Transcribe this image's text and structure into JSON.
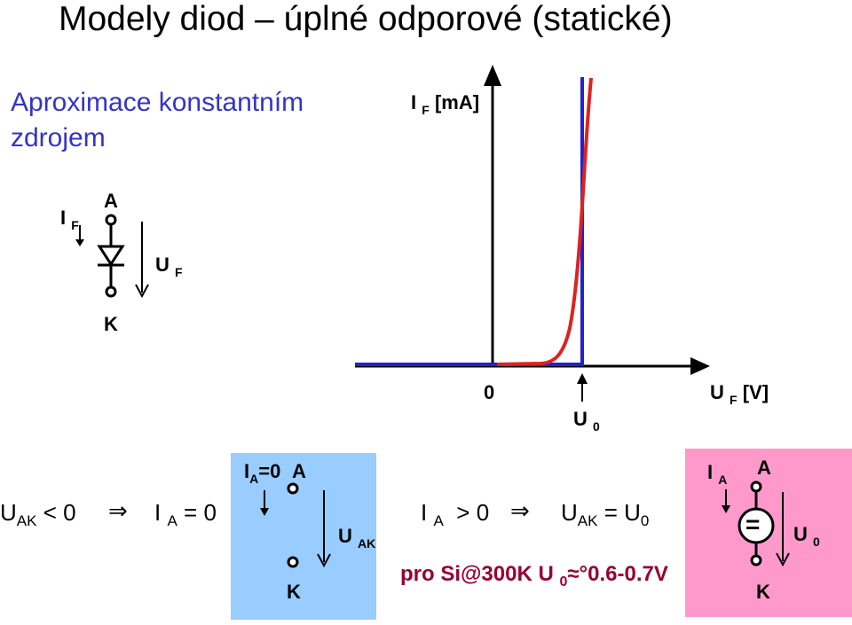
{
  "title": "Modely diod – úplné odporové (statické)",
  "subtitle": "Aproximace konstantním zdrojem",
  "graph": {
    "y_axis_main": "I",
    "y_axis_sub": "F",
    "y_axis_unit": "[mA]",
    "x_axis_main": "U",
    "x_axis_sub": "F",
    "x_axis_unit": "[V]",
    "origin_label": "0",
    "threshold_main": "U",
    "threshold_sub": "0",
    "curves": [
      {
        "model": "ideal-constant-source",
        "color": "#2222cc"
      },
      {
        "model": "real-exponential",
        "color": "#dd2222"
      }
    ]
  },
  "diode_symbol": {
    "current_main": "I",
    "current_sub": "F",
    "anode": "A",
    "cathode": "K",
    "voltage_main": "U",
    "voltage_sub": "F"
  },
  "equations": {
    "left_condition": {
      "var": "U",
      "sub": "AK",
      "rel": "<",
      "val": "0"
    },
    "left_implication": "⇒",
    "left_result": {
      "var": "I",
      "sub": "A",
      "rel": "=",
      "val": "0"
    },
    "right_condition": {
      "var": "I",
      "sub": "A",
      "rel": ">",
      "val": "0"
    },
    "right_implication": "⇒",
    "right_result": {
      "var": "U",
      "sub": "AK",
      "rel": "=",
      "var2": "U",
      "sub2": "0"
    }
  },
  "blue_box": {
    "current_main": "I",
    "current_sub": "A",
    "current_value": "=0",
    "anode": "A",
    "cathode": "K",
    "voltage_main": "U",
    "voltage_sub": "AK",
    "color": "#99ccff"
  },
  "pink_box": {
    "current_main": "I",
    "current_sub": "A",
    "anode": "A",
    "cathode": "K",
    "source_glyph": "=",
    "voltage_main": "U",
    "voltage_sub": "0",
    "color": "#ff99cc"
  },
  "note": {
    "prefix": "pro Si@300K U",
    "sub": "0",
    "suffix": "≈°0.6-0.7V"
  }
}
